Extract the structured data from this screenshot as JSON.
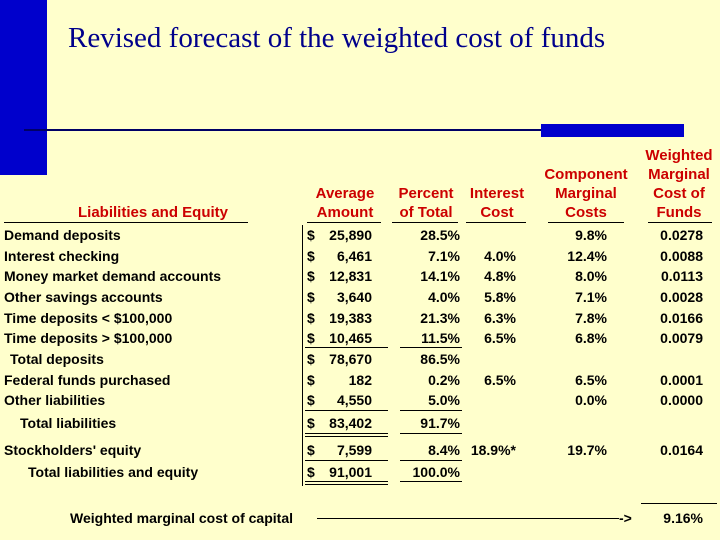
{
  "title": "Revised forecast of the weighted cost of funds",
  "headers": {
    "item": "Liabilities and Equity",
    "amount": "Average\nAmount",
    "percent": "Percent\nof Total",
    "interest": "Interest\nCost",
    "component": "Component\nMarginal\nCosts",
    "weighted": "Weighted\nMarginal\nCost of\nFunds"
  },
  "rows": [
    {
      "label": "Demand deposits",
      "dollar": "$",
      "amount": "25,890",
      "percent": "28.5%",
      "interest": "",
      "component": "9.8%",
      "weighted": "0.0278"
    },
    {
      "label": "Interest checking",
      "dollar": "$",
      "amount": "6,461",
      "percent": "7.1%",
      "interest": "4.0%",
      "component": "12.4%",
      "weighted": "0.0088"
    },
    {
      "label": "Money market demand accounts",
      "dollar": "$",
      "amount": "12,831",
      "percent": "14.1%",
      "interest": "4.8%",
      "component": "8.0%",
      "weighted": "0.0113"
    },
    {
      "label": "Other savings accounts",
      "dollar": "$",
      "amount": "3,640",
      "percent": "4.0%",
      "interest": "5.8%",
      "component": "7.1%",
      "weighted": "0.0028"
    },
    {
      "label": "Time deposits < $100,000",
      "dollar": "$",
      "amount": "19,383",
      "percent": "21.3%",
      "interest": "6.3%",
      "component": "7.8%",
      "weighted": "0.0166"
    },
    {
      "label": "Time deposits > $100,000",
      "dollar": "$",
      "amount": "10,465",
      "percent": "11.5%",
      "interest": "6.5%",
      "component": "6.8%",
      "weighted": "0.0079"
    },
    {
      "label": "Total deposits",
      "dollar": "$",
      "amount": "78,670",
      "percent": "86.5%",
      "interest": "",
      "component": "",
      "weighted": ""
    },
    {
      "label": "Federal funds purchased",
      "dollar": "$",
      "amount": "182",
      "percent": "0.2%",
      "interest": "6.5%",
      "component": "6.5%",
      "weighted": "0.0001"
    },
    {
      "label": "Other liabilities",
      "dollar": "$",
      "amount": "4,550",
      "percent": "5.0%",
      "interest": "",
      "component": "0.0%",
      "weighted": "0.0000"
    },
    {
      "label": "Total liabilities",
      "dollar": "$",
      "amount": "83,402",
      "percent": "91.7%",
      "interest": "",
      "component": "",
      "weighted": ""
    },
    {
      "label": "Stockholders' equity",
      "dollar": "$",
      "amount": "7,599",
      "percent": "8.4%",
      "interest": "18.9%*",
      "component": "19.7%",
      "weighted": "0.0164"
    },
    {
      "label": "Total liabilities and equity",
      "dollar": "$",
      "amount": "91,001",
      "percent": "100.0%",
      "interest": "",
      "component": "",
      "weighted": ""
    }
  ],
  "footer": {
    "label": "Weighted marginal cost of capital",
    "arrow": "->",
    "value": "9.16%"
  },
  "colors": {
    "background": "#ffffcc",
    "title": "#00008b",
    "header": "#cc0000",
    "accent": "#0000cc"
  }
}
